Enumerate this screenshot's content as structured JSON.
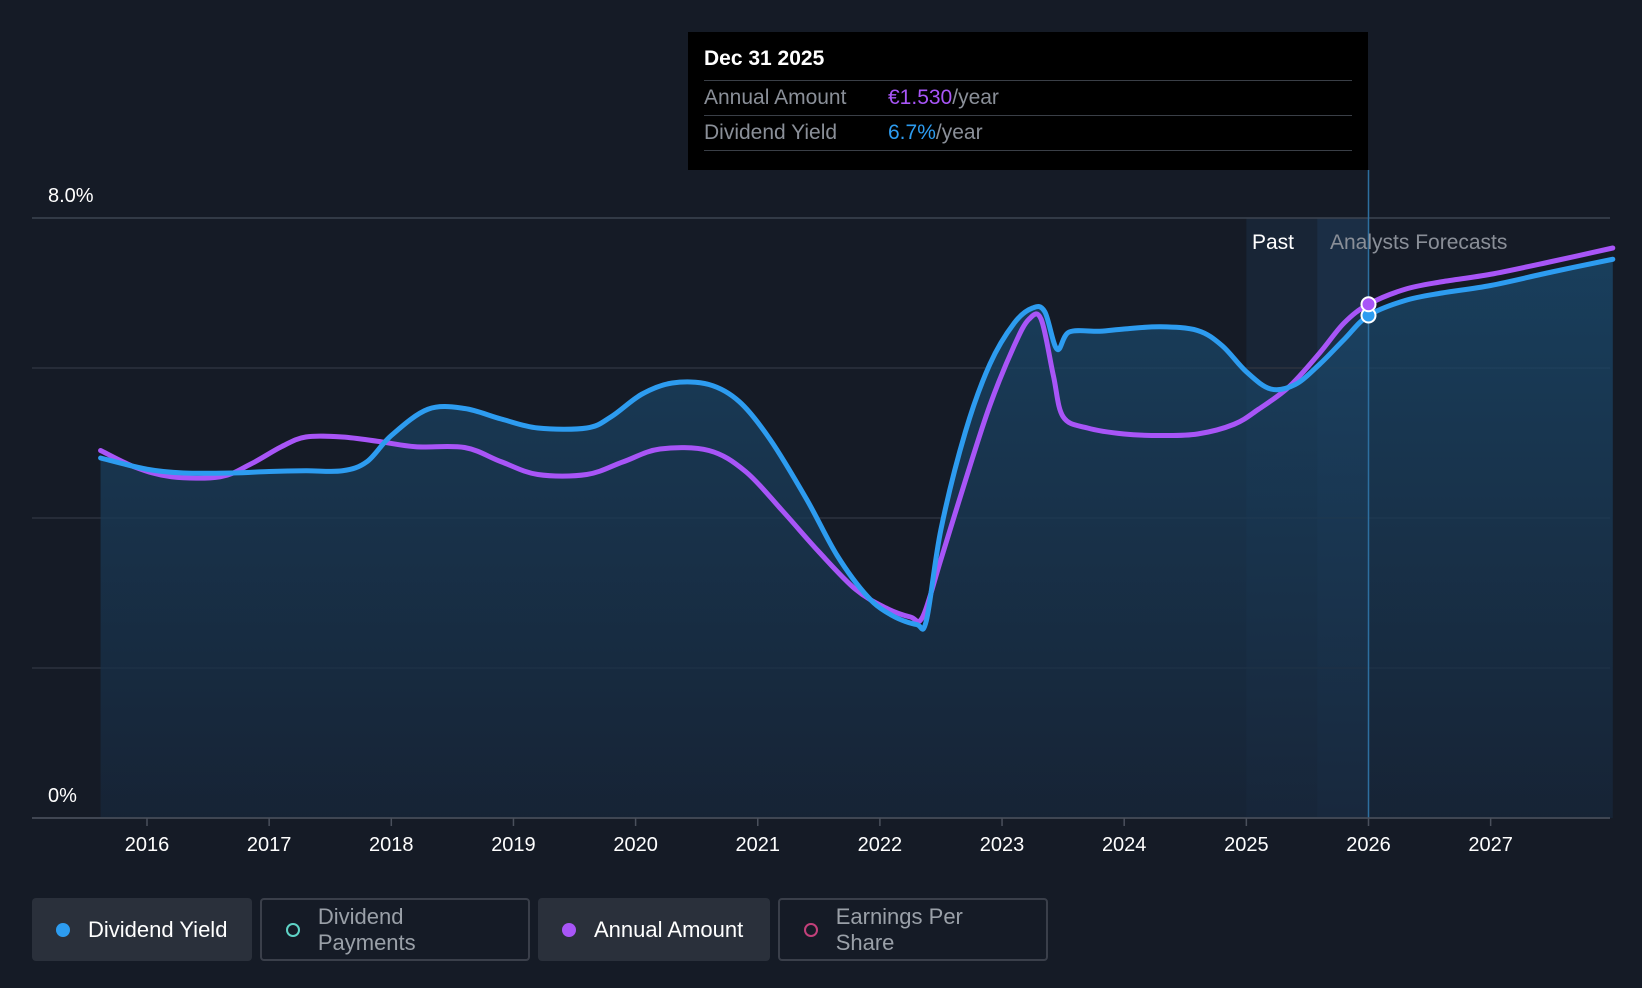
{
  "tooltip": {
    "date": "Dec 31 2025",
    "rows": [
      {
        "label": "Annual Amount",
        "value": "€1.530",
        "unit": "/year",
        "color": "#a855f7"
      },
      {
        "label": "Dividend Yield",
        "value": "6.7%",
        "unit": "/year",
        "color": "#2d9cf0"
      }
    ]
  },
  "legend": [
    {
      "label": "Dividend Yield",
      "color": "#2d9cf0",
      "active": true
    },
    {
      "label": "Dividend Payments",
      "color": "#5fd3c6",
      "active": false
    },
    {
      "label": "Annual Amount",
      "color": "#a855f7",
      "active": true
    },
    {
      "label": "Earnings Per Share",
      "color": "#c2407a",
      "active": false
    }
  ],
  "chart_data": {
    "type": "line",
    "y_tick_labels": [
      "8.0%",
      "0%"
    ],
    "ylim": [
      0,
      8
    ],
    "xlim": [
      2015.1,
      2028.0
    ],
    "x_ticks": [
      2016,
      2017,
      2018,
      2019,
      2020,
      2021,
      2022,
      2023,
      2024,
      2025,
      2026,
      2027
    ],
    "regions": {
      "past_label": "Past",
      "forecast_label": "Analysts Forecasts",
      "past_start": 2025.0,
      "forecast_start": 2025.58,
      "cursor": 2026.0
    },
    "grid": true,
    "series": [
      {
        "name": "Dividend Yield",
        "color": "#2d9cf0",
        "area": true,
        "points": [
          [
            2015.62,
            4.8
          ],
          [
            2016.0,
            4.65
          ],
          [
            2016.3,
            4.6
          ],
          [
            2016.7,
            4.6
          ],
          [
            2017.0,
            4.62
          ],
          [
            2017.3,
            4.63
          ],
          [
            2017.6,
            4.63
          ],
          [
            2017.8,
            4.75
          ],
          [
            2018.0,
            5.1
          ],
          [
            2018.3,
            5.45
          ],
          [
            2018.6,
            5.46
          ],
          [
            2018.9,
            5.32
          ],
          [
            2019.2,
            5.2
          ],
          [
            2019.6,
            5.2
          ],
          [
            2019.8,
            5.35
          ],
          [
            2020.05,
            5.65
          ],
          [
            2020.3,
            5.8
          ],
          [
            2020.6,
            5.78
          ],
          [
            2020.85,
            5.55
          ],
          [
            2021.1,
            5.05
          ],
          [
            2021.4,
            4.25
          ],
          [
            2021.65,
            3.5
          ],
          [
            2021.9,
            2.95
          ],
          [
            2022.1,
            2.7
          ],
          [
            2022.3,
            2.58
          ],
          [
            2022.38,
            2.63
          ],
          [
            2022.5,
            3.85
          ],
          [
            2022.7,
            5.15
          ],
          [
            2022.9,
            6.05
          ],
          [
            2023.1,
            6.6
          ],
          [
            2023.25,
            6.8
          ],
          [
            2023.35,
            6.75
          ],
          [
            2023.45,
            6.25
          ],
          [
            2023.55,
            6.48
          ],
          [
            2023.8,
            6.49
          ],
          [
            2024.0,
            6.52
          ],
          [
            2024.3,
            6.55
          ],
          [
            2024.6,
            6.5
          ],
          [
            2024.8,
            6.3
          ],
          [
            2025.0,
            5.95
          ],
          [
            2025.2,
            5.72
          ],
          [
            2025.4,
            5.78
          ],
          [
            2025.6,
            6.05
          ],
          [
            2025.8,
            6.38
          ],
          [
            2026.0,
            6.7
          ],
          [
            2026.3,
            6.9
          ],
          [
            2026.6,
            7.0
          ],
          [
            2027.0,
            7.1
          ],
          [
            2027.5,
            7.28
          ],
          [
            2028.0,
            7.45
          ]
        ]
      },
      {
        "name": "Annual Amount",
        "color": "#a855f7",
        "area": false,
        "points": [
          [
            2015.62,
            4.9
          ],
          [
            2015.9,
            4.68
          ],
          [
            2016.2,
            4.55
          ],
          [
            2016.6,
            4.55
          ],
          [
            2016.85,
            4.72
          ],
          [
            2017.1,
            4.95
          ],
          [
            2017.3,
            5.08
          ],
          [
            2017.6,
            5.08
          ],
          [
            2017.9,
            5.02
          ],
          [
            2018.2,
            4.95
          ],
          [
            2018.6,
            4.94
          ],
          [
            2018.9,
            4.75
          ],
          [
            2019.2,
            4.58
          ],
          [
            2019.6,
            4.58
          ],
          [
            2019.9,
            4.75
          ],
          [
            2020.2,
            4.92
          ],
          [
            2020.6,
            4.9
          ],
          [
            2020.9,
            4.62
          ],
          [
            2021.2,
            4.1
          ],
          [
            2021.5,
            3.55
          ],
          [
            2021.8,
            3.05
          ],
          [
            2022.05,
            2.8
          ],
          [
            2022.25,
            2.68
          ],
          [
            2022.35,
            2.68
          ],
          [
            2022.5,
            3.45
          ],
          [
            2022.7,
            4.5
          ],
          [
            2022.9,
            5.5
          ],
          [
            2023.1,
            6.3
          ],
          [
            2023.22,
            6.65
          ],
          [
            2023.32,
            6.65
          ],
          [
            2023.42,
            5.9
          ],
          [
            2023.5,
            5.35
          ],
          [
            2023.7,
            5.2
          ],
          [
            2024.0,
            5.12
          ],
          [
            2024.3,
            5.1
          ],
          [
            2024.6,
            5.12
          ],
          [
            2024.9,
            5.25
          ],
          [
            2025.1,
            5.45
          ],
          [
            2025.35,
            5.75
          ],
          [
            2025.6,
            6.2
          ],
          [
            2025.8,
            6.6
          ],
          [
            2026.0,
            6.85
          ],
          [
            2026.3,
            7.05
          ],
          [
            2026.6,
            7.15
          ],
          [
            2027.0,
            7.25
          ],
          [
            2027.5,
            7.42
          ],
          [
            2028.0,
            7.6
          ]
        ]
      }
    ]
  }
}
